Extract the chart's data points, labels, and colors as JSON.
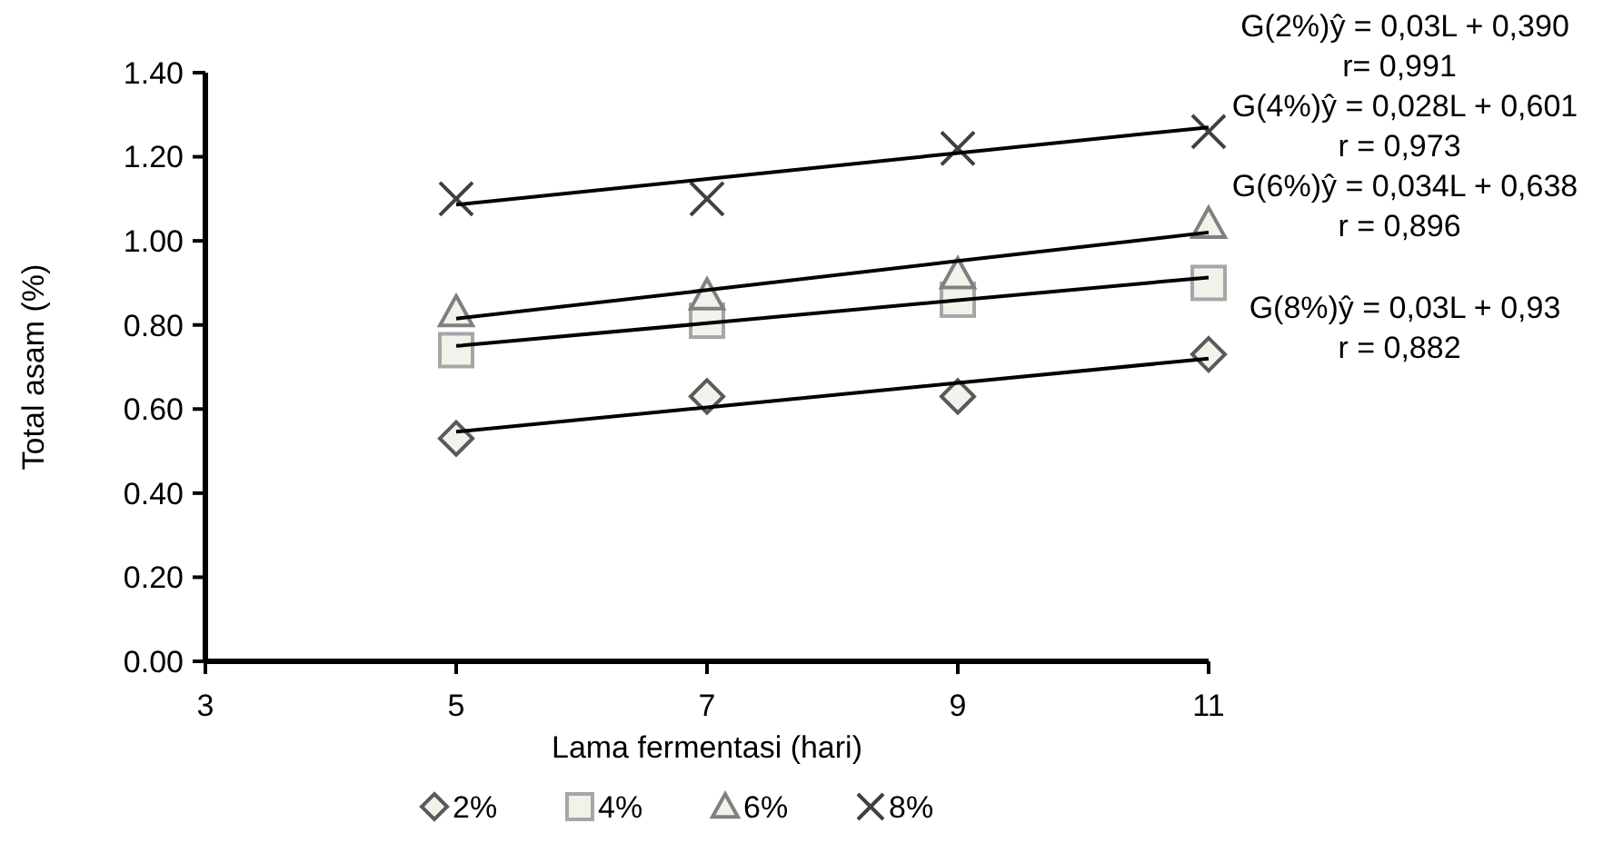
{
  "chart_data": {
    "type": "scatter",
    "xlabel": "Lama fermentasi (hari)",
    "ylabel": "Total asam (%)",
    "xlim": [
      3,
      11
    ],
    "ylim": [
      0,
      1.4
    ],
    "xticks": [
      3,
      5,
      7,
      9,
      11
    ],
    "yticks": [
      {
        "value": 0,
        "label": "0.00"
      },
      {
        "value": 0.2,
        "label": "0.20"
      },
      {
        "value": 0.4,
        "label": "0.40"
      },
      {
        "value": 0.6,
        "label": "0.60"
      },
      {
        "value": 0.8,
        "label": "0.80"
      },
      {
        "value": 1,
        "label": "1.00"
      },
      {
        "value": 1.2,
        "label": "1.20"
      },
      {
        "value": 1.4,
        "label": "1.40"
      }
    ],
    "x": [
      5,
      7,
      9,
      11
    ],
    "grid": false,
    "legend": "bottom",
    "series": [
      {
        "name": "2%",
        "marker": "diamond",
        "color": "#595959",
        "values": [
          0.53,
          0.63,
          0.63,
          0.73
        ]
      },
      {
        "name": "4%",
        "marker": "square",
        "color": "#a6a6a6",
        "values": [
          0.74,
          0.81,
          0.86,
          0.9
        ]
      },
      {
        "name": "6%",
        "marker": "triangle",
        "color": "#808080",
        "values": [
          0.83,
          0.87,
          0.92,
          1.04
        ]
      },
      {
        "name": "8%",
        "marker": "cross",
        "color": "#404040",
        "values": [
          1.1,
          1.1,
          1.22,
          1.26
        ]
      },
      {
        "type": "line",
        "color": "#000000",
        "marker": "none",
        "line_style": "solid",
        "values": [
          0.546,
          0.604,
          0.662,
          0.72
        ]
      },
      {
        "type": "line",
        "color": "#000000",
        "marker": "none",
        "line_style": "solid",
        "values": [
          0.75,
          0.804,
          0.859,
          0.913
        ]
      },
      {
        "type": "line",
        "color": "#000000",
        "marker": "none",
        "line_style": "solid",
        "values": [
          0.815,
          0.883,
          0.952,
          1.02
        ]
      },
      {
        "type": "line",
        "color": "#000000",
        "marker": "none",
        "line_style": "solid",
        "values": [
          1.086,
          1.147,
          1.209,
          1.27
        ]
      }
    ],
    "annotations": [
      "G(2%)ŷ = 0,03L + 0,390",
      "r= 0,991",
      "G(4%)ŷ = 0,028L + 0,601",
      "r = 0,973",
      "G(6%)ŷ = 0,034L + 0,638",
      "r = 0,896",
      "G(8%)ŷ = 0,03L + 0,93",
      "r = 0,882"
    ]
  }
}
